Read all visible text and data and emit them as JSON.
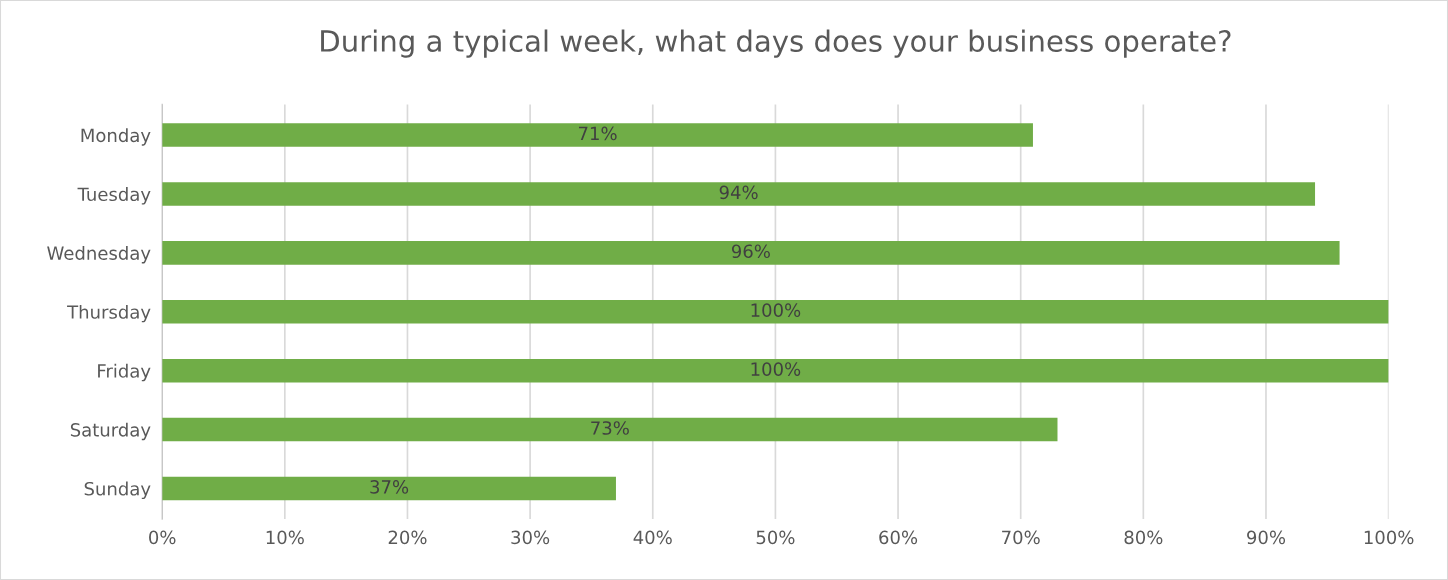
{
  "chart_data": {
    "type": "bar",
    "orientation": "horizontal",
    "title": "During a typical week, what days does your business operate?",
    "categories": [
      "Monday",
      "Tuesday",
      "Wednesday",
      "Thursday",
      "Friday",
      "Saturday",
      "Sunday"
    ],
    "values": [
      71,
      94,
      96,
      100,
      100,
      73,
      37
    ],
    "value_labels": [
      "71%",
      "94%",
      "96%",
      "100%",
      "100%",
      "73%",
      "37%"
    ],
    "color": "#70ad47",
    "xlim": [
      0,
      100
    ],
    "xticks": [
      {
        "value": 0,
        "label": "0%"
      },
      {
        "value": 10,
        "label": "10%"
      },
      {
        "value": 20,
        "label": "20%"
      },
      {
        "value": 30,
        "label": "30%"
      },
      {
        "value": 40,
        "label": "40%"
      },
      {
        "value": 50,
        "label": "50%"
      },
      {
        "value": 60,
        "label": "60%"
      },
      {
        "value": 70,
        "label": "70%"
      },
      {
        "value": 80,
        "label": "80%"
      },
      {
        "value": 90,
        "label": "90%"
      },
      {
        "value": 100,
        "label": "100%"
      }
    ],
    "grid": "x",
    "legend": false
  }
}
